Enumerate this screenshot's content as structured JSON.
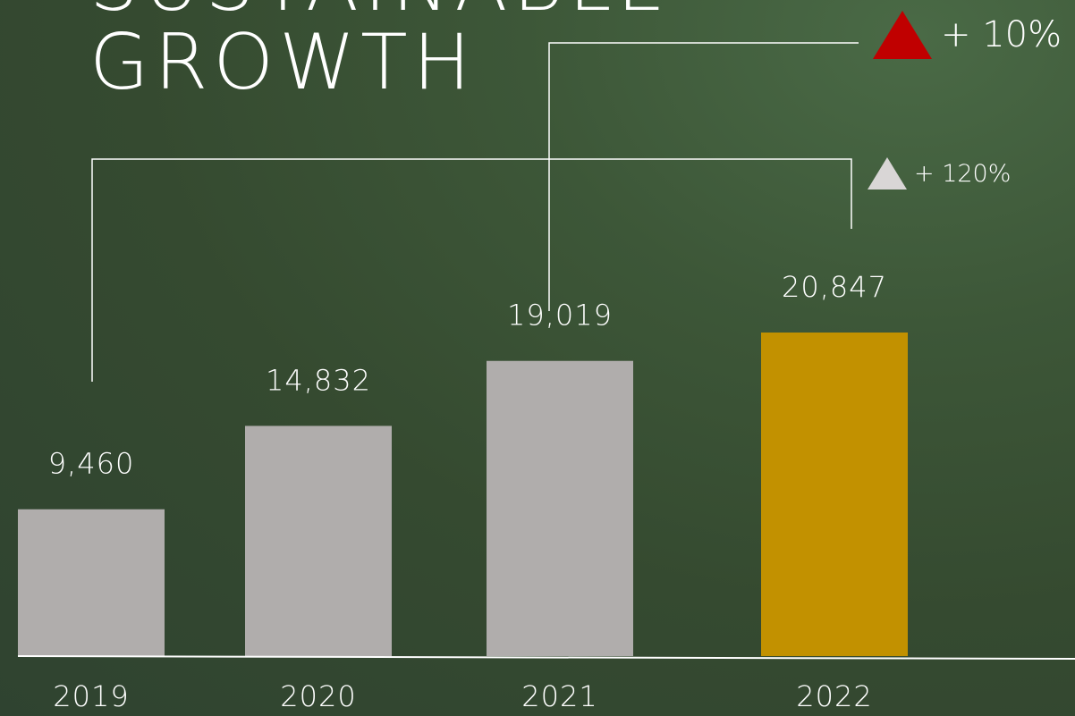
{
  "title_lines": [
    "SUSTAINABLE",
    "GROWTH"
  ],
  "growth_top": {
    "label": "+ 10%",
    "icon": "red-up-triangle-icon",
    "color": "#c00000"
  },
  "growth_bottom": {
    "label": "+ 120%",
    "icon": "grey-up-triangle-icon",
    "color": "#d9d6d6"
  },
  "colors": {
    "bar_default": "#b0adac",
    "bar_highlight": "#c29100",
    "axis": "#ffffff",
    "connector": "#ffffff"
  },
  "chart_data": {
    "type": "bar",
    "title": "SUSTAINABLE GROWTH",
    "categories": [
      "2019",
      "2020",
      "2021",
      "2022"
    ],
    "values": [
      9460,
      14832,
      19019,
      20847
    ],
    "value_labels": [
      "9,460",
      "14,832",
      "19,019",
      "20,847"
    ],
    "highlight_index": 3,
    "xlabel": "",
    "ylabel": "",
    "ylim": [
      0,
      24000
    ],
    "grid": false,
    "annotations": [
      {
        "from": "2021",
        "to": "2022",
        "text": "+ 10%"
      },
      {
        "from": "2019",
        "to": "2022",
        "text": "+ 120%"
      }
    ]
  }
}
